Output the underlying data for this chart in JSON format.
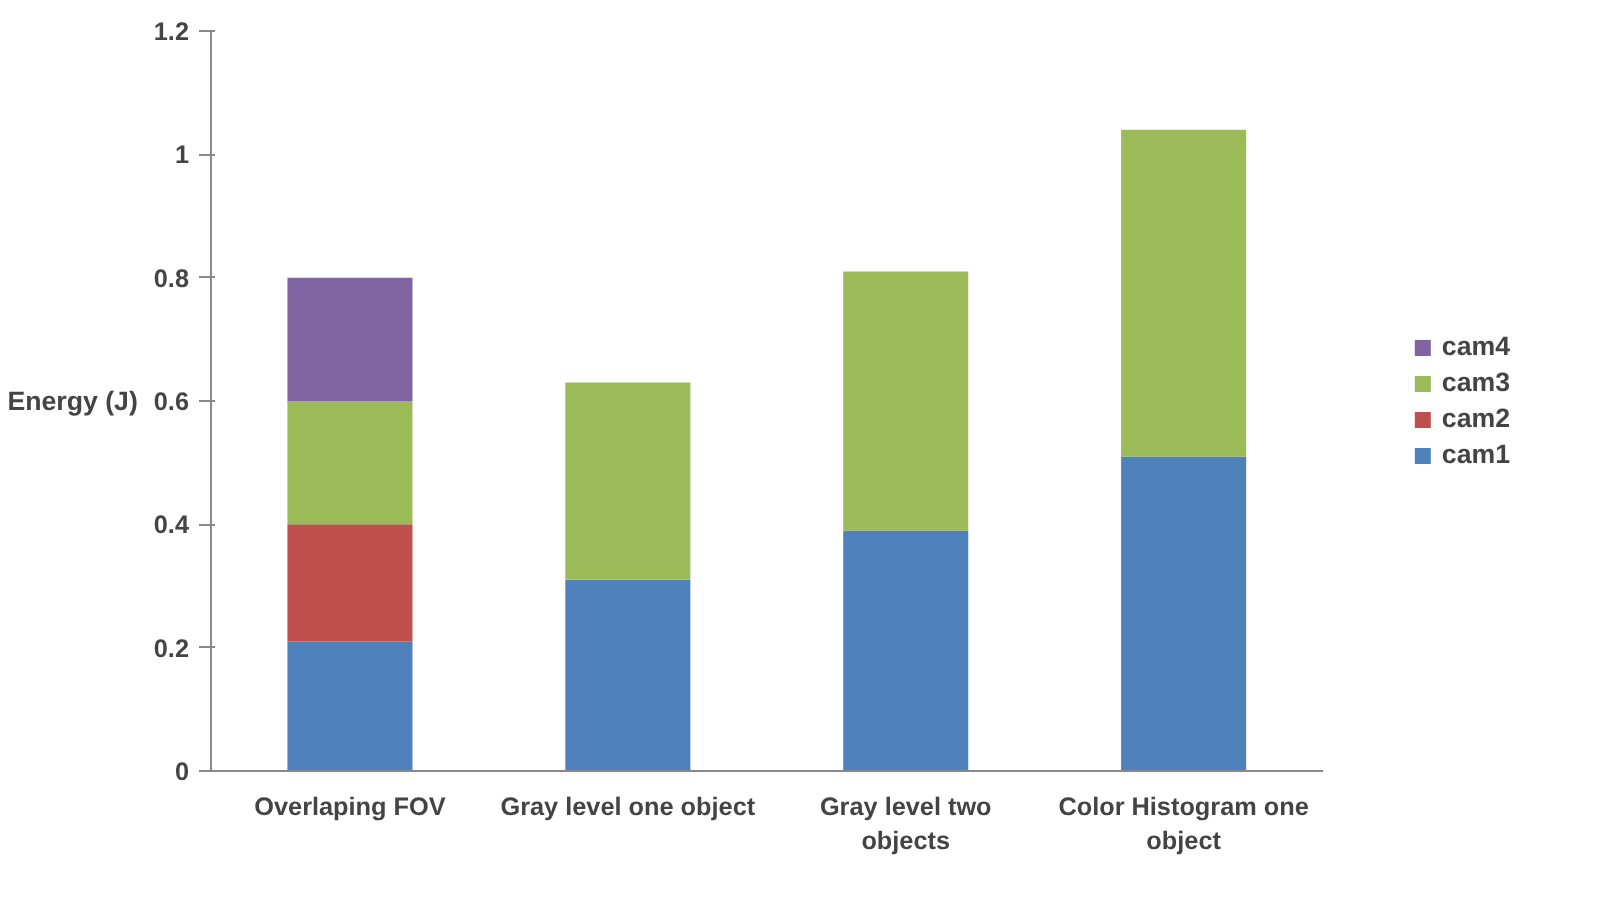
{
  "chart_data": {
    "type": "bar",
    "stacked": true,
    "ylabel": "Energy (J)",
    "categories": [
      "Overlaping FOV",
      "Gray level one object",
      "Gray level two objects",
      "Color Histogram one object"
    ],
    "series": [
      {
        "name": "cam1",
        "color": "#4f81bd",
        "values": [
          0.21,
          0.31,
          0.39,
          0.51
        ]
      },
      {
        "name": "cam2",
        "color": "#c0504d",
        "values": [
          0.19,
          0,
          0,
          0
        ]
      },
      {
        "name": "cam3",
        "color": "#9bbb59",
        "values": [
          0.2,
          0.32,
          0.42,
          0.53
        ]
      },
      {
        "name": "cam4",
        "color": "#8064a2",
        "values": [
          0.2,
          0,
          0,
          0
        ]
      }
    ],
    "ylim": [
      0,
      1.2
    ],
    "yticks": [
      0,
      0.2,
      0.4,
      0.6,
      0.8,
      1,
      1.2
    ],
    "grid": false,
    "legend": "right"
  }
}
